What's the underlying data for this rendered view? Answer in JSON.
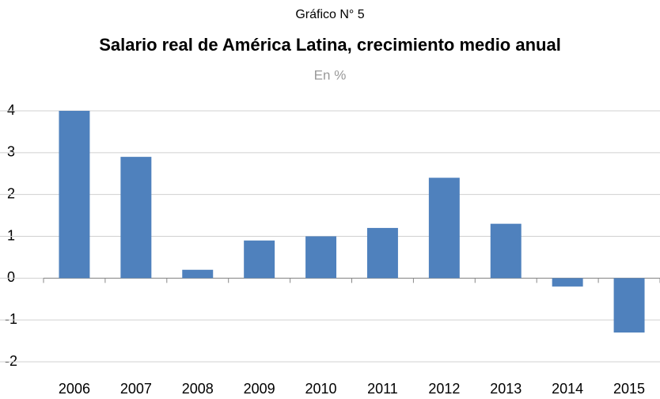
{
  "chart_data": {
    "type": "bar",
    "subtitle": "Gráfico N° 5",
    "title": "Salario real de América Latina, crecimiento medio anual",
    "unit_note": "En %",
    "categories": [
      "2006",
      "2007",
      "2008",
      "2009",
      "2010",
      "2011",
      "2012",
      "2013",
      "2014",
      "2015"
    ],
    "values": [
      4.0,
      2.9,
      0.2,
      0.9,
      1.0,
      1.2,
      2.4,
      1.3,
      -0.2,
      -1.3
    ],
    "color": "#4f81bd",
    "ylim": [
      -2,
      4
    ],
    "yticks": [
      -2,
      -1,
      0,
      1,
      2,
      3,
      4
    ],
    "grid": true
  }
}
